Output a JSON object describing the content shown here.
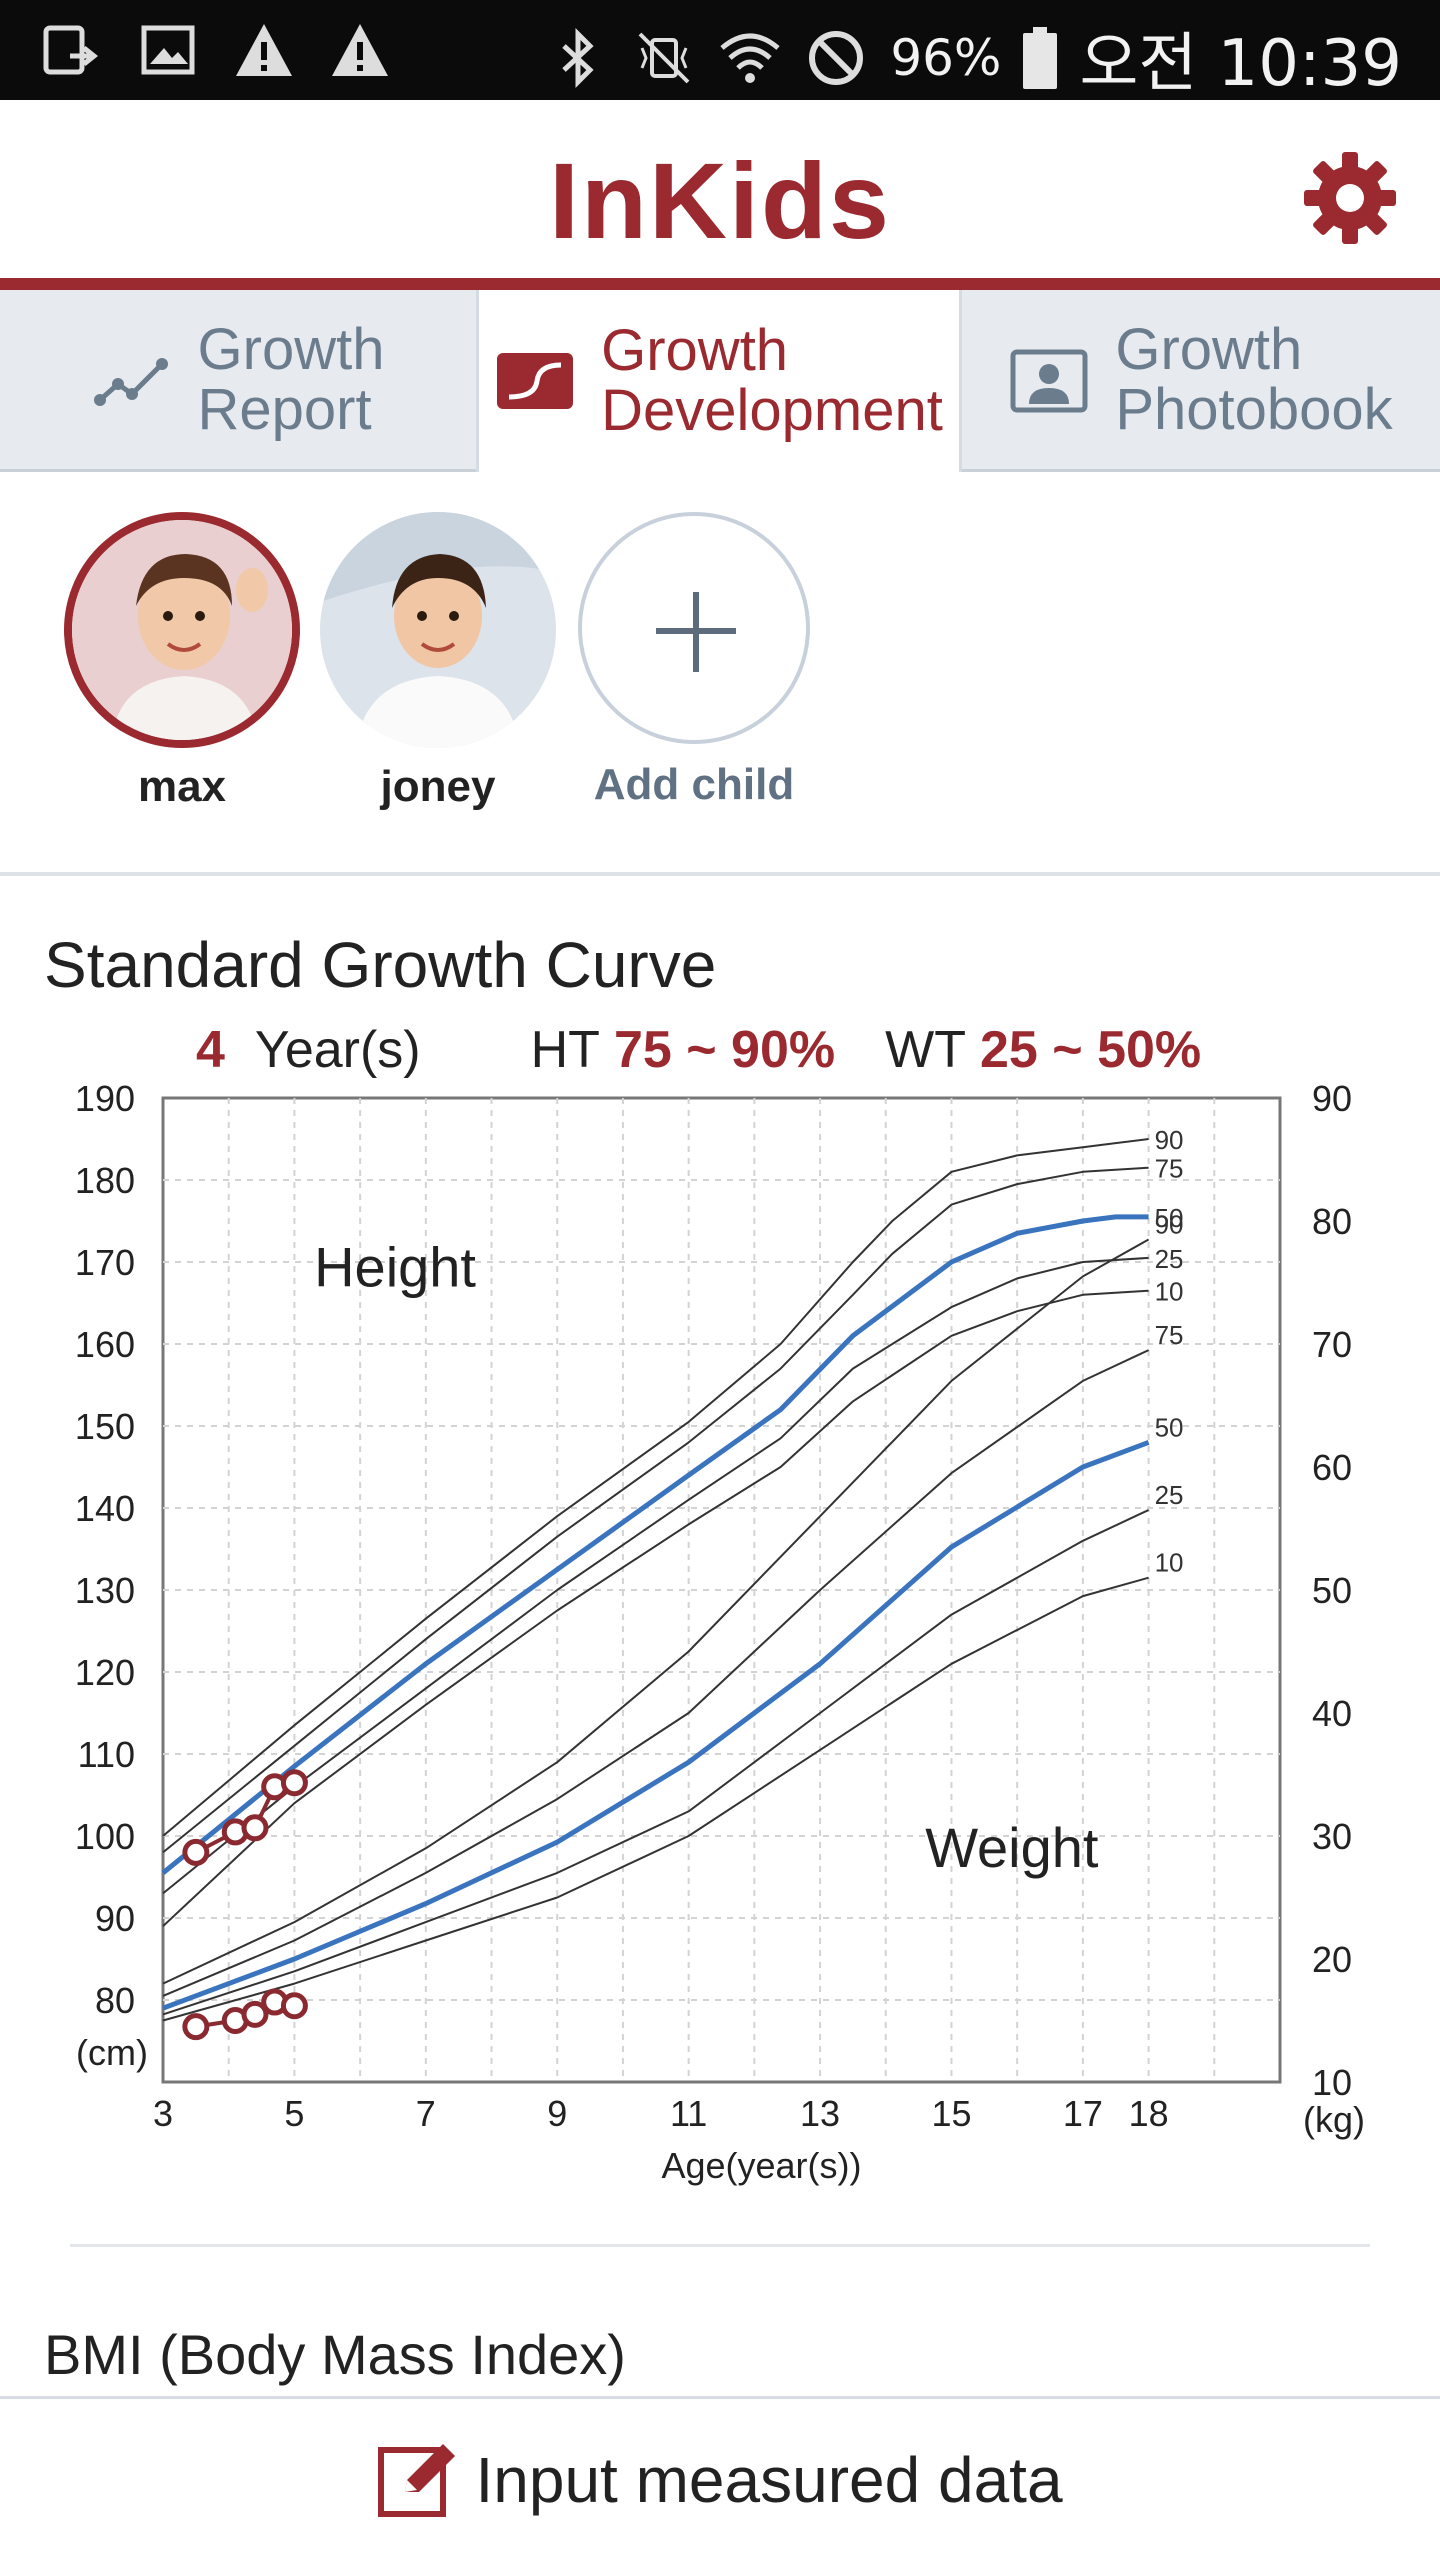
{
  "status_bar": {
    "battery_text": "96%",
    "clock": "오전 10:39",
    "left_icons": [
      "screen-cast-icon",
      "image-icon",
      "warning-icon",
      "warning-icon"
    ],
    "right_icons": [
      "bluetooth-icon",
      "vibrate-mute-icon",
      "wifi-icon",
      "do-not-disturb-icon",
      "battery-icon"
    ]
  },
  "header": {
    "logo": "InKids",
    "settings_icon": "gear-icon",
    "accent_color": "#9a2a30"
  },
  "tabs": [
    {
      "line1": "Growth",
      "line2": "Report",
      "icon": "line-chart-icon",
      "active": false
    },
    {
      "line1": "Growth",
      "line2": "Development",
      "icon": "curve-icon",
      "active": true
    },
    {
      "line1": "Growth",
      "line2": "Photobook",
      "icon": "portrait-icon",
      "active": false
    }
  ],
  "children": [
    {
      "name": "max",
      "selected": true
    },
    {
      "name": "joney",
      "selected": false
    }
  ],
  "add_child": {
    "label": "Add child"
  },
  "growth": {
    "title": "Standard Growth Curve",
    "age_value": "4",
    "age_unit": "Year(s)",
    "ht_label": "HT",
    "ht_value": "75 ~ 90%",
    "wt_label": "WT",
    "wt_value": "25 ~ 50%"
  },
  "bmi": {
    "title": "BMI (Body Mass Index)"
  },
  "bottom_bar": {
    "label": "Input measured data",
    "icon": "edit-icon"
  },
  "chart_data": {
    "type": "line",
    "xlabel": "Age(year(s))",
    "x_ticks": [
      "3",
      "5",
      "7",
      "9",
      "11",
      "13",
      "15",
      "17",
      "18"
    ],
    "xlim": [
      3,
      20
    ],
    "y_left_label": "(cm)",
    "y_left_ticks": [
      "190",
      "180",
      "170",
      "160",
      "150",
      "140",
      "130",
      "120",
      "110",
      "100",
      "90",
      "80"
    ],
    "y_left_lim": [
      70,
      190
    ],
    "y_right_label": "(kg)",
    "y_right_ticks": [
      "90",
      "80",
      "70",
      "60",
      "50",
      "40",
      "30",
      "20",
      "10"
    ],
    "y_right_lim": [
      10,
      90
    ],
    "grid": true,
    "annotations": [
      "Height",
      "Weight"
    ],
    "percentile_labels": [
      "90",
      "75",
      "50",
      "25",
      "10"
    ],
    "height_percentiles": [
      {
        "name": "90",
        "x": [
          3,
          5,
          7,
          9,
          11,
          12.4,
          13.5,
          14.1,
          15,
          16,
          17,
          18
        ],
        "y": [
          100,
          113.5,
          126.5,
          139,
          150.5,
          160,
          170,
          175,
          181,
          183,
          184,
          185
        ]
      },
      {
        "name": "75",
        "x": [
          3,
          5,
          7,
          9,
          11,
          12.4,
          13.5,
          14.1,
          15,
          16,
          17,
          18
        ],
        "y": [
          98,
          111,
          124,
          136.5,
          148,
          157,
          166,
          171,
          177,
          179.5,
          181,
          181.5
        ]
      },
      {
        "name": "50",
        "x": [
          3,
          5,
          7,
          9,
          11,
          12.4,
          13.5,
          15,
          16,
          17,
          17.5,
          18
        ],
        "y": [
          95.5,
          108.5,
          121,
          132.5,
          144,
          152,
          161,
          170,
          173.5,
          175,
          175.5,
          175.5
        ]
      },
      {
        "name": "25",
        "x": [
          3,
          5,
          7,
          9,
          11,
          12.4,
          13.5,
          15,
          16,
          17,
          18
        ],
        "y": [
          93,
          106,
          118,
          130,
          141,
          148.5,
          157,
          164.5,
          168,
          170,
          170.5
        ]
      },
      {
        "name": "10",
        "x": [
          3,
          5,
          7,
          9,
          11,
          12.4,
          13.5,
          15,
          16,
          17,
          18
        ],
        "y": [
          89,
          104,
          116,
          127.5,
          138,
          145,
          153,
          161,
          164,
          166,
          166.5
        ]
      }
    ],
    "weight_percentiles": [
      {
        "name": "90",
        "x": [
          3,
          5,
          7,
          9,
          11,
          13,
          15,
          17,
          18
        ],
        "y": [
          18,
          23,
          29,
          36,
          45,
          56,
          67,
          75.5,
          78.5
        ]
      },
      {
        "name": "75",
        "x": [
          3,
          5,
          7,
          9,
          11,
          13,
          15,
          17,
          18
        ],
        "y": [
          17,
          21.5,
          27,
          33,
          40,
          50,
          59.5,
          67,
          69.5
        ]
      },
      {
        "name": "50",
        "x": [
          3,
          5,
          7,
          9,
          11,
          13,
          15,
          17,
          18
        ],
        "y": [
          16,
          20,
          24.5,
          29.5,
          36,
          44,
          53.5,
          60,
          62
        ]
      },
      {
        "name": "25",
        "x": [
          3,
          5,
          7,
          9,
          11,
          13,
          15,
          17,
          18
        ],
        "y": [
          15.5,
          19,
          23,
          27,
          32,
          40,
          48,
          54,
          56.5
        ]
      },
      {
        "name": "10",
        "x": [
          3,
          5,
          7,
          9,
          11,
          13,
          15,
          17,
          18
        ],
        "y": [
          15,
          18,
          21.5,
          25,
          30,
          37,
          44,
          49.5,
          51
        ]
      }
    ],
    "child_height": {
      "x": [
        3.5,
        4.1,
        4.4,
        4.7,
        5.0
      ],
      "y": [
        98,
        100.5,
        101,
        106,
        106.5
      ]
    },
    "child_weight": {
      "x": [
        3.5,
        4.1,
        4.4,
        4.7,
        5.0
      ],
      "y": [
        14.5,
        15,
        15.5,
        16.5,
        16.2
      ]
    }
  }
}
